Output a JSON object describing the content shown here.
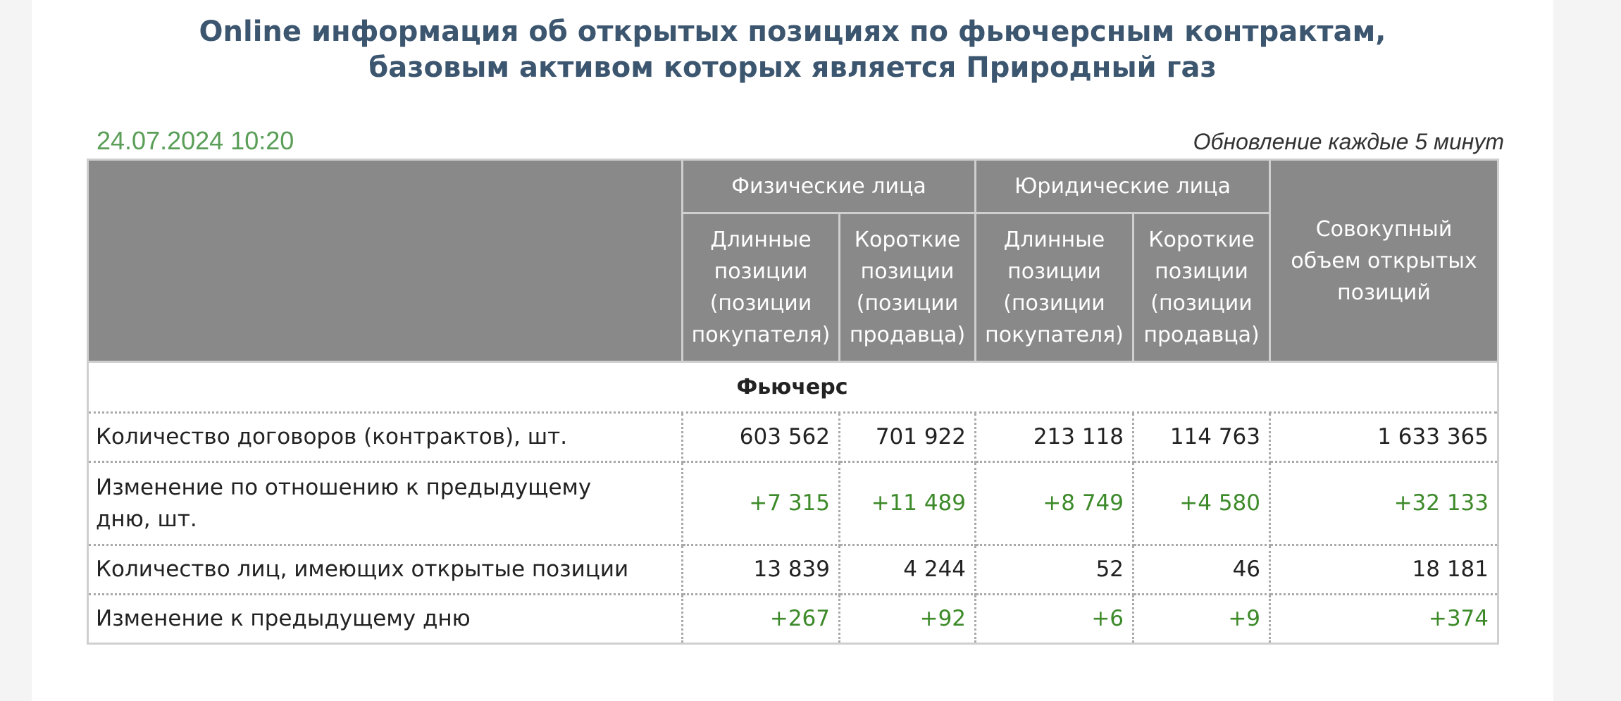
{
  "title": {
    "line1": "Online информация об открытых позициях по фьючерсным контрактам,",
    "line2": "базовым активом которых является Природный газ"
  },
  "datetime": "24.07.2024 10:20",
  "update_note": "Обновление каждые 5 минут",
  "table": {
    "groups": {
      "individuals": "Физические лица",
      "legal": "Юридические лица",
      "total": "Совокупный объем открытых позиций"
    },
    "subheaders": {
      "long": "Длинные позиции (позиции покупателя)",
      "short": "Короткие позиции (позиции продавца)"
    },
    "section": "Фьючерс",
    "rows": [
      {
        "label": "Количество договоров (контрактов), шт.",
        "values": [
          "603 562",
          "701 922",
          "213 118",
          "114 763",
          "1 633 365"
        ]
      },
      {
        "label": "Изменение по отношению к предыдущему дню, шт.",
        "values": [
          "+7 315",
          "+11 489",
          "+8 749",
          "+4 580",
          "+32 133"
        ]
      },
      {
        "label": "Количество лиц, имеющих открытые позиции",
        "values": [
          "13 839",
          "4 244",
          "52",
          "46",
          "18 181"
        ]
      },
      {
        "label": "Изменение к предыдущему дню",
        "values": [
          "+267",
          "+92",
          "+6",
          "+9",
          "+374"
        ]
      }
    ]
  },
  "colors": {
    "title": "#3c5670",
    "datetime": "#5a9e57",
    "header_bg": "#898989",
    "positive_change": "#3d8a2a"
  }
}
